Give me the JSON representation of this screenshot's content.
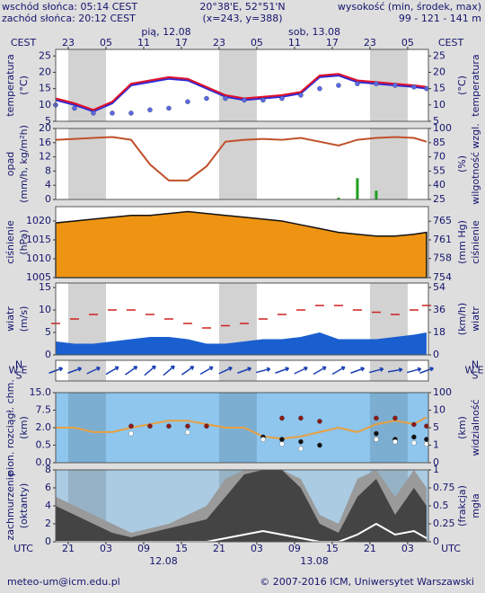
{
  "header": {
    "sunrise": "wschód słońca: 05:14 CEST",
    "sunset": "zachód słońca: 20:12 CEST",
    "coords": "20°38'E, 52°51'N",
    "grid": "(x=243, y=388)",
    "height_label": "wysokość (min, środek, max)",
    "height_values": "99 - 121 - 141 m"
  },
  "footer": {
    "email": "meteo-um@icm.edu.pl",
    "copyright": "© 2007-2016 ICM, Uniwersytet Warszawski"
  },
  "chart_data": [
    {
      "type": "line",
      "ylabel": [
        "temperatura",
        "(°C)"
      ],
      "y2label": [
        "temperatura",
        "(°C)"
      ],
      "xlabel": "CEST",
      "date_labels": [
        "pią, 12.08",
        "sob, 13.08"
      ],
      "xlim": [
        0,
        59.3
      ],
      "xticks": [
        {
          "value": 2,
          "label": "23"
        },
        {
          "value": 8,
          "label": "05"
        },
        {
          "value": 14,
          "label": "11"
        },
        {
          "value": 20,
          "label": "17"
        },
        {
          "value": 26,
          "label": "23"
        },
        {
          "value": 32,
          "label": "05"
        },
        {
          "value": 38,
          "label": "11"
        },
        {
          "value": 44,
          "label": "17"
        },
        {
          "value": 50,
          "label": "23"
        },
        {
          "value": 56,
          "label": "05"
        }
      ],
      "x": [
        0,
        3,
        6,
        9,
        12,
        15,
        18,
        21,
        24,
        27,
        30,
        33,
        36,
        39,
        42,
        45,
        48,
        51,
        54,
        57,
        59
      ],
      "ylim": [
        5,
        27
      ],
      "yticks": [
        5,
        10,
        15,
        20,
        25
      ],
      "y2lim": [
        5,
        27
      ],
      "y2ticks": [
        5,
        10,
        15,
        20,
        25
      ],
      "series": [
        {
          "type": "line",
          "color": "#2a2ad6",
          "values": [
            11.5,
            10,
            8,
            10.5,
            16,
            17,
            18,
            17.5,
            15,
            12.5,
            11.5,
            12,
            12.5,
            13.5,
            18.5,
            19,
            17,
            16.5,
            16,
            15.5,
            15
          ]
        },
        {
          "type": "line",
          "color": "#e0102a",
          "values": [
            12,
            10.5,
            8.5,
            11,
            16.5,
            17.5,
            18.5,
            18,
            15.5,
            13,
            12,
            12.5,
            13,
            14,
            19,
            19.5,
            17.5,
            17,
            16.5,
            16,
            15.5
          ]
        },
        {
          "type": "dots",
          "color": "#5a6ae6",
          "values": [
            10,
            9,
            7.5,
            7.5,
            7.5,
            8.5,
            9,
            11,
            12,
            12,
            11.5,
            11.5,
            12,
            13,
            15,
            16,
            16.5,
            16.5,
            16,
            15.5,
            15
          ]
        }
      ]
    },
    {
      "type": "bar",
      "ylabel": [
        "opad",
        "(mm/h, kg/m²h)"
      ],
      "y2label": [
        "wilgotność wzgl.",
        "(%)"
      ],
      "xlim": [
        0,
        59.3
      ],
      "x": [
        0,
        3,
        6,
        9,
        12,
        15,
        18,
        21,
        24,
        27,
        30,
        33,
        36,
        39,
        42,
        45,
        48,
        51,
        54,
        57,
        59
      ],
      "ylim": [
        0,
        20
      ],
      "yticks": [
        0,
        4,
        8,
        12,
        16,
        20
      ],
      "y2lim": [
        25,
        100
      ],
      "y2ticks": [
        25,
        40,
        55,
        70,
        85,
        100
      ],
      "series": [
        {
          "type": "bars",
          "color": "#1ea01e",
          "values": [
            0,
            0,
            0,
            0,
            0,
            0,
            0,
            0,
            0,
            0,
            0,
            0,
            0,
            0,
            0,
            0.5,
            6,
            2.5,
            0,
            0,
            0
          ]
        },
        {
          "type": "line",
          "axis": "y2",
          "color": "#c0502a",
          "values": [
            88,
            89,
            90,
            91,
            88,
            62,
            45,
            45,
            60,
            86,
            88,
            89,
            88,
            90,
            86,
            82,
            88,
            90,
            91,
            90,
            86
          ]
        }
      ]
    },
    {
      "type": "area",
      "ylabel": [
        "ciśnienie",
        "(hPa)"
      ],
      "y2label": [
        "ciśnienie",
        "(mm Hg)"
      ],
      "xlim": [
        0,
        59.3
      ],
      "x": [
        0,
        3,
        6,
        9,
        12,
        15,
        18,
        21,
        24,
        27,
        30,
        33,
        36,
        39,
        42,
        45,
        48,
        51,
        54,
        57,
        59
      ],
      "ylim": [
        1005,
        1023.8
      ],
      "yticks": [
        1005,
        1010,
        1015,
        1020
      ],
      "y2lim": [
        753.8,
        767.9
      ],
      "y2ticks": [
        {
          "value": 753.8,
          "label": "754"
        },
        {
          "value": 757.6,
          "label": "758"
        },
        {
          "value": 761.3,
          "label": "761"
        },
        765
      ],
      "series": [
        {
          "type": "area",
          "color": "#ee9412",
          "values": [
            1019.5,
            1020,
            1020.5,
            1021,
            1021.5,
            1021.5,
            1022,
            1022.5,
            1022,
            1021.5,
            1021,
            1020.5,
            1020,
            1019,
            1018,
            1017,
            1016.5,
            1016,
            1016,
            1016.5,
            1017
          ]
        }
      ]
    },
    {
      "type": "area",
      "ylabel": [
        "wiatr",
        "(m/s)"
      ],
      "y2label": [
        "wiatr",
        "(km/h)"
      ],
      "xlim": [
        0,
        59.3
      ],
      "x": [
        0,
        3,
        6,
        9,
        12,
        15,
        18,
        21,
        24,
        27,
        30,
        33,
        36,
        39,
        42,
        45,
        48,
        51,
        54,
        57,
        59
      ],
      "ylim": [
        0,
        16
      ],
      "yticks": [
        0,
        5,
        10,
        15
      ],
      "y2lim": [
        0,
        57.6
      ],
      "y2ticks": [
        0,
        18,
        36,
        54
      ],
      "series": [
        {
          "type": "area",
          "color": "#1a5fd0",
          "values": [
            3,
            2.5,
            2.5,
            3,
            3.5,
            4,
            4,
            3.5,
            2.5,
            2.5,
            3,
            3.5,
            3.5,
            4,
            5,
            3.5,
            3.5,
            3.5,
            4,
            4.5,
            5
          ]
        },
        {
          "type": "dashes",
          "color": "#d02020",
          "values": [
            7,
            8,
            9,
            10,
            10,
            9,
            8,
            7,
            6,
            6.5,
            7,
            8,
            9,
            10,
            11,
            11,
            10,
            9.5,
            9,
            10,
            11
          ]
        }
      ]
    },
    {
      "type": "vector",
      "compass": {
        "N": "N",
        "E": "E",
        "S": "S",
        "W": "W"
      },
      "xlim": [
        0,
        59.3
      ],
      "x": [
        0,
        3,
        6,
        9,
        12,
        15,
        18,
        21,
        24,
        27,
        30,
        33,
        36,
        39,
        42,
        45,
        48,
        51,
        54,
        57,
        59
      ],
      "color": "#1a3fb0",
      "values": [
        250,
        250,
        245,
        240,
        235,
        230,
        230,
        235,
        240,
        245,
        250,
        255,
        250,
        245,
        240,
        240,
        250,
        255,
        260,
        255,
        250
      ]
    },
    {
      "type": "scatter",
      "ylabel": [
        "pion. rozciągł. chm.",
        "(km)"
      ],
      "y2label": [
        "widzialność",
        "(km)"
      ],
      "xlim": [
        0,
        59.3
      ],
      "x": [
        0,
        3,
        6,
        9,
        12,
        15,
        18,
        21,
        24,
        27,
        30,
        33,
        36,
        39,
        42,
        45,
        48,
        51,
        54,
        57,
        59
      ],
      "yscale": "tick-spaced",
      "ylim": [
        0,
        15
      ],
      "yticks": [
        {
          "value": 0,
          "label": "0.0"
        },
        0.5,
        {
          "value": 2,
          "label": "2.0"
        },
        7.5,
        {
          "value": 15,
          "label": "15.0"
        }
      ],
      "y2scale": "tick-spaced",
      "y2lim": [
        0,
        100
      ],
      "y2ticks": [
        0,
        1,
        5,
        10,
        100
      ],
      "series": [
        {
          "type": "line",
          "axis": "y2",
          "color": "#e8a040",
          "values": [
            5,
            5,
            4,
            4,
            5,
            6,
            7,
            7,
            6,
            5,
            5,
            3,
            2.5,
            3,
            4,
            5,
            4,
            6,
            7,
            6,
            8
          ]
        },
        {
          "type": "dots",
          "color": "#8b1a1a",
          "values": [
            null,
            null,
            null,
            null,
            2.5,
            2.5,
            2.5,
            2.5,
            2.5,
            null,
            null,
            null,
            5,
            5,
            4,
            null,
            null,
            5,
            5,
            3,
            2.5
          ]
        },
        {
          "type": "dots",
          "color": "#111111",
          "values": [
            null,
            null,
            null,
            null,
            null,
            null,
            null,
            null,
            null,
            null,
            null,
            1.2,
            1,
            0.8,
            0.5,
            null,
            null,
            1.5,
            1,
            1.2,
            1
          ]
        },
        {
          "type": "dots",
          "color": "#ffffff",
          "values": [
            null,
            null,
            null,
            null,
            1.5,
            null,
            null,
            1.6,
            null,
            null,
            null,
            1,
            0.6,
            0.4,
            null,
            null,
            null,
            1,
            0.8,
            0.7,
            0.6
          ]
        }
      ]
    },
    {
      "type": "area",
      "ylabel": [
        "zachmurzenie",
        "(oktanty)"
      ],
      "y2label": [
        "mgła",
        "(frakcja)"
      ],
      "xlabel": "UTC",
      "date_labels": [
        "12.08",
        "13.08"
      ],
      "xlim": [
        0,
        59.3
      ],
      "xticks": [
        {
          "value": 2,
          "label": "21"
        },
        {
          "value": 8,
          "label": "03"
        },
        {
          "value": 14,
          "label": "09"
        },
        {
          "value": 20,
          "label": "15"
        },
        {
          "value": 26,
          "label": "21"
        },
        {
          "value": 32,
          "label": "03"
        },
        {
          "value": 38,
          "label": "09"
        },
        {
          "value": 44,
          "label": "15"
        },
        {
          "value": 50,
          "label": "21"
        },
        {
          "value": 56,
          "label": "03"
        }
      ],
      "x": [
        0,
        3,
        6,
        9,
        12,
        15,
        18,
        21,
        24,
        27,
        30,
        33,
        36,
        39,
        42,
        45,
        48,
        51,
        54,
        57,
        59
      ],
      "ylim": [
        0,
        8
      ],
      "yticks": [
        0,
        2,
        4,
        6,
        8
      ],
      "y2lim": [
        0,
        1
      ],
      "y2ticks": [
        0,
        0.25,
        0.5,
        0.75,
        1
      ],
      "series": [
        {
          "type": "area",
          "color": "#9a9a9a",
          "values": [
            5,
            4,
            3,
            2,
            1,
            1.5,
            2,
            3,
            4,
            7,
            8,
            8,
            8,
            7,
            3,
            2,
            7,
            8,
            5,
            8,
            6
          ]
        },
        {
          "type": "area",
          "color": "#444444",
          "values": [
            4,
            3,
            2,
            1,
            0.5,
            1,
            1.5,
            2,
            2.5,
            5,
            7.5,
            8,
            8,
            6,
            2,
            1,
            5,
            7,
            3,
            6,
            4
          ]
        },
        {
          "type": "line",
          "axis": "y2",
          "color": "#ffffff",
          "values": [
            0,
            0,
            0,
            0,
            0,
            0,
            0,
            0,
            0,
            0.05,
            0.1,
            0.15,
            0.1,
            0.05,
            0,
            0,
            0.1,
            0.25,
            0.1,
            0.15,
            0.05
          ]
        }
      ]
    }
  ]
}
